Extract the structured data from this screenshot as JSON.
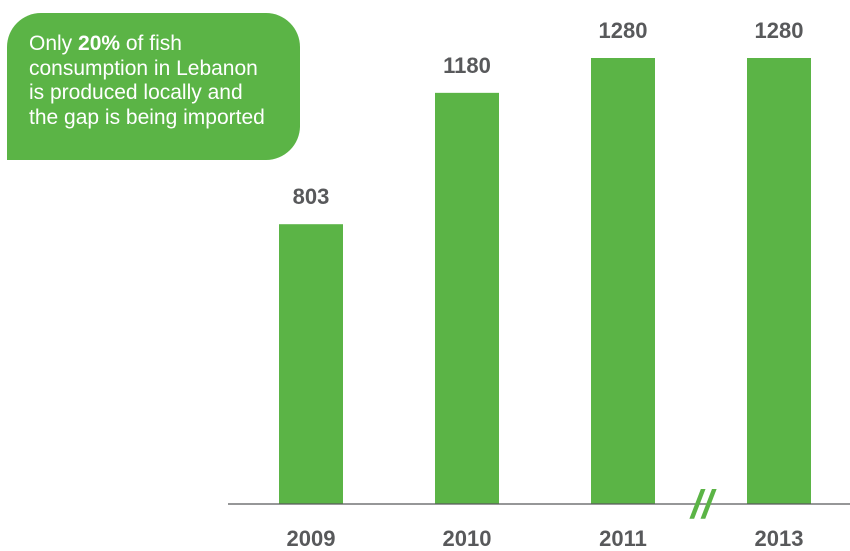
{
  "callout": {
    "line1_pre": "Only ",
    "line1_bold": "20%",
    "line1_post": " of fish",
    "line2": "consumption in Lebanon",
    "line3": "is produced locally and",
    "line4": "the gap is being imported"
  },
  "axis_break_symbol": "//",
  "colors": {
    "bar": "#5bb446",
    "callout_bg": "#5bb446",
    "text": "#58595b",
    "axis": "#58595b"
  },
  "chart_data": {
    "type": "bar",
    "categories": [
      "2009",
      "2010",
      "2011",
      "2013"
    ],
    "values": [
      803,
      1180,
      1280,
      1280
    ],
    "data_labels": [
      "803",
      "1180",
      "1280",
      "1280"
    ],
    "title": "",
    "xlabel": "",
    "ylabel": "",
    "ylim": [
      0,
      1280
    ],
    "axis_break": "between 2011 and 2013",
    "grid": false,
    "legend": "none"
  }
}
